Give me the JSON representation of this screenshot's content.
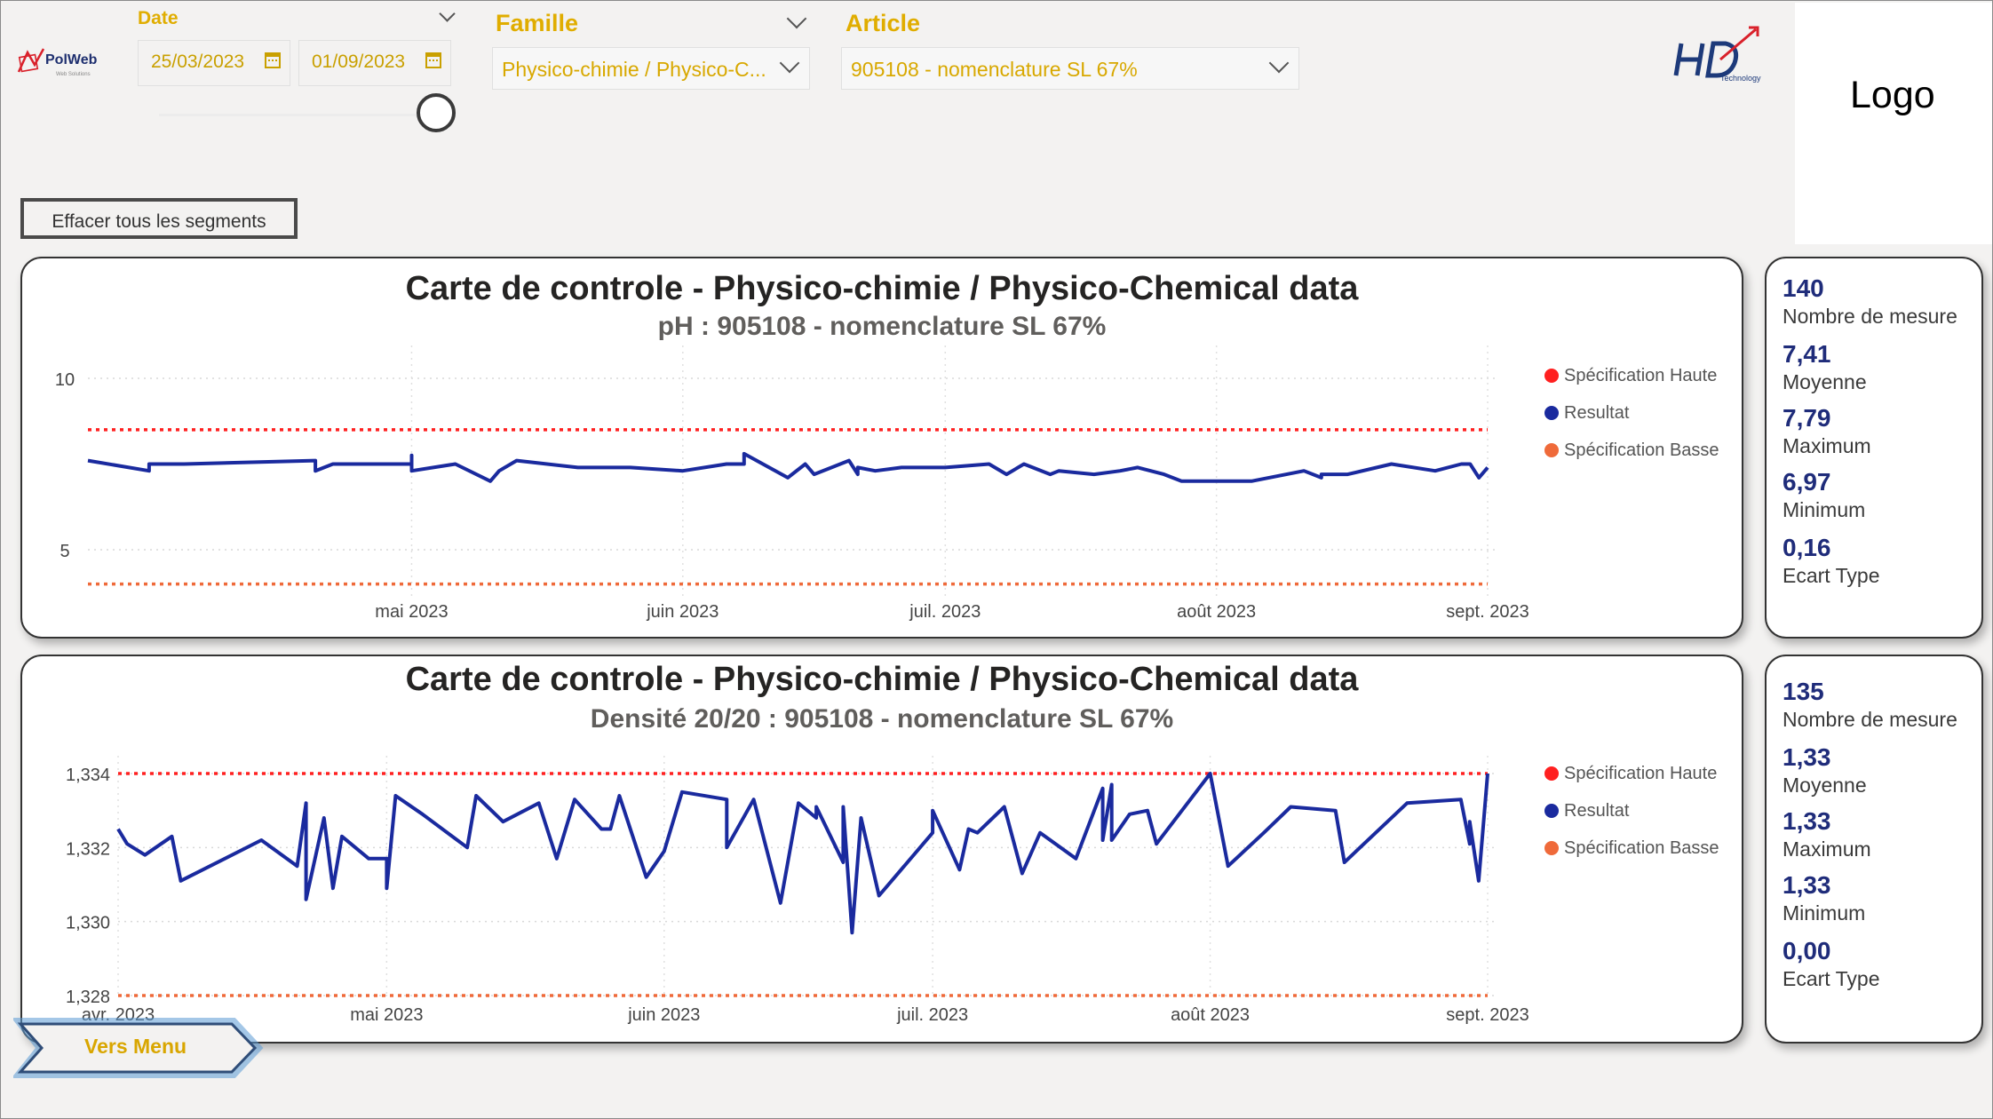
{
  "logo_placeholder": "Logo",
  "brand": {
    "left_logo": "PolWeb",
    "left_logo_sub": "Web Solutions",
    "right_logo": "HD",
    "right_logo_sub": "Technology"
  },
  "filters": {
    "date": {
      "title": "Date",
      "start": "25/03/2023",
      "end": "01/09/2023"
    },
    "famille": {
      "title": "Famille",
      "value": "Physico-chimie / Physico-C..."
    },
    "article": {
      "title": "Article",
      "value": "905108 - nomenclature SL 67%"
    }
  },
  "clear_button": "Effacer tous les segments",
  "menu_button": "Vers Menu",
  "colors": {
    "accent": "#e0ad00",
    "series": "#1a2a9e",
    "spec_high": "#ff2020",
    "spec_low": "#ef6a3a",
    "stat_value": "#1f2c7a"
  },
  "legend": {
    "spec_high": "Spécification Haute",
    "result": "Resultat",
    "spec_low": "Spécification Basse"
  },
  "chart_data": [
    {
      "type": "line",
      "title": "Carte de controle - Physico-chimie / Physico-Chemical data",
      "subtitle": "pH : 905108 - nomenclature SL 67%",
      "x_ticks": [
        "mai 2023",
        "juin 2023",
        "juil. 2023",
        "août 2023",
        "sept. 2023"
      ],
      "x_tick_dates": [
        "2023-05-01",
        "2023-06-01",
        "2023-07-01",
        "2023-08-01",
        "2023-09-01"
      ],
      "x_range": [
        "2023-03-25",
        "2023-09-01"
      ],
      "y_ticks": [
        {
          "value": 10,
          "label": "10"
        },
        {
          "value": 5,
          "label": "5"
        }
      ],
      "ylim": [
        4,
        10
      ],
      "grid": true,
      "legend_position": "right",
      "spec_high": 8.5,
      "spec_low": 4.0,
      "series": [
        {
          "name": "Resultat",
          "x": [
            "2023-03-25",
            "2023-04-01",
            "2023-04-01",
            "2023-04-05",
            "2023-04-20",
            "2023-04-20",
            "2023-04-22",
            "2023-05-01",
            "2023-05-01",
            "2023-05-01",
            "2023-05-06",
            "2023-05-10",
            "2023-05-11",
            "2023-05-13",
            "2023-05-20",
            "2023-05-26",
            "2023-06-01",
            "2023-06-06",
            "2023-06-08",
            "2023-06-08",
            "2023-06-13",
            "2023-06-15",
            "2023-06-16",
            "2023-06-18",
            "2023-06-20",
            "2023-06-21",
            "2023-06-21",
            "2023-06-23",
            "2023-06-26",
            "2023-06-28",
            "2023-07-01",
            "2023-07-06",
            "2023-07-08",
            "2023-07-10",
            "2023-07-13",
            "2023-07-14",
            "2023-07-18",
            "2023-07-21",
            "2023-07-23",
            "2023-07-26",
            "2023-07-28",
            "2023-08-05",
            "2023-08-11",
            "2023-08-13",
            "2023-08-13",
            "2023-08-16",
            "2023-08-21",
            "2023-08-26",
            "2023-08-29",
            "2023-08-30",
            "2023-08-31",
            "2023-09-01"
          ],
          "y": [
            7.6,
            7.3,
            7.5,
            7.5,
            7.6,
            7.3,
            7.5,
            7.5,
            7.75,
            7.3,
            7.5,
            7.0,
            7.3,
            7.6,
            7.4,
            7.4,
            7.3,
            7.5,
            7.5,
            7.8,
            7.1,
            7.5,
            7.2,
            7.4,
            7.6,
            7.2,
            7.4,
            7.3,
            7.4,
            7.4,
            7.4,
            7.5,
            7.2,
            7.5,
            7.2,
            7.3,
            7.2,
            7.3,
            7.4,
            7.2,
            7.0,
            7.0,
            7.3,
            7.1,
            7.2,
            7.2,
            7.5,
            7.3,
            7.5,
            7.5,
            7.1,
            7.4
          ]
        }
      ]
    },
    {
      "type": "line",
      "title": "Carte de controle - Physico-chimie / Physico-Chemical data",
      "subtitle": "Densité 20/20 : 905108 - nomenclature SL 67%",
      "x_ticks": [
        "avr. 2023",
        "mai 2023",
        "juin 2023",
        "juil. 2023",
        "août 2023",
        "sept. 2023"
      ],
      "x_tick_dates": [
        "2023-04-01",
        "2023-05-01",
        "2023-06-01",
        "2023-07-01",
        "2023-08-01",
        "2023-09-01"
      ],
      "x_range": [
        "2023-04-01",
        "2023-09-01"
      ],
      "y_ticks": [
        {
          "value": 1.334,
          "label": "1,334"
        },
        {
          "value": 1.332,
          "label": "1,332"
        },
        {
          "value": 1.33,
          "label": "1,330"
        },
        {
          "value": 1.328,
          "label": "1,328"
        }
      ],
      "ylim": [
        1.328,
        1.334
      ],
      "grid": true,
      "legend_position": "right",
      "spec_high": 1.334,
      "spec_low": 1.328,
      "series": [
        {
          "name": "Resultat",
          "x": [
            "2023-04-01",
            "2023-04-02",
            "2023-04-04",
            "2023-04-07",
            "2023-04-08",
            "2023-04-17",
            "2023-04-21",
            "2023-04-22",
            "2023-04-22",
            "2023-04-24",
            "2023-04-25",
            "2023-04-26",
            "2023-04-29",
            "2023-05-01",
            "2023-05-01",
            "2023-05-02",
            "2023-05-05",
            "2023-05-10",
            "2023-05-11",
            "2023-05-14",
            "2023-05-18",
            "2023-05-20",
            "2023-05-22",
            "2023-05-25",
            "2023-05-26",
            "2023-05-27",
            "2023-05-30",
            "2023-06-01",
            "2023-06-03",
            "2023-06-08",
            "2023-06-08",
            "2023-06-11",
            "2023-06-14",
            "2023-06-16",
            "2023-06-18",
            "2023-06-18",
            "2023-06-21",
            "2023-06-21",
            "2023-06-22",
            "2023-06-23",
            "2023-06-25",
            "2023-07-01",
            "2023-07-01",
            "2023-07-04",
            "2023-07-05",
            "2023-07-06",
            "2023-07-09",
            "2023-07-11",
            "2023-07-13",
            "2023-07-17",
            "2023-07-20",
            "2023-07-20",
            "2023-07-21",
            "2023-07-21",
            "2023-07-23",
            "2023-07-25",
            "2023-07-26",
            "2023-08-01",
            "2023-08-03",
            "2023-08-07",
            "2023-08-10",
            "2023-08-15",
            "2023-08-16",
            "2023-08-23",
            "2023-08-29",
            "2023-08-30",
            "2023-08-30",
            "2023-08-31",
            "2023-09-01"
          ],
          "y": [
            1.3325,
            1.3321,
            1.3318,
            1.3323,
            1.3311,
            1.3322,
            1.3315,
            1.3332,
            1.3306,
            1.3328,
            1.3309,
            1.3323,
            1.3317,
            1.3317,
            1.3309,
            1.3334,
            1.3329,
            1.332,
            1.3334,
            1.3327,
            1.3332,
            1.3317,
            1.3333,
            1.3325,
            1.3325,
            1.3334,
            1.3312,
            1.3319,
            1.3335,
            1.3333,
            1.332,
            1.3333,
            1.3305,
            1.3332,
            1.3328,
            1.3331,
            1.3316,
            1.3331,
            1.3297,
            1.3328,
            1.3307,
            1.3324,
            1.333,
            1.3314,
            1.3325,
            1.3324,
            1.3331,
            1.3313,
            1.3324,
            1.3317,
            1.3336,
            1.3322,
            1.3337,
            1.3322,
            1.3329,
            1.333,
            1.3321,
            1.334,
            1.3315,
            1.3324,
            1.3331,
            1.333,
            1.3316,
            1.3332,
            1.3333,
            1.3321,
            1.3327,
            1.3311,
            1.334
          ]
        }
      ]
    }
  ],
  "stats": [
    [
      {
        "value": "140",
        "label": "Nombre de mesure"
      },
      {
        "value": "7,41",
        "label": "Moyenne"
      },
      {
        "value": "7,79",
        "label": "Maximum"
      },
      {
        "value": "6,97",
        "label": "Minimum"
      },
      {
        "value": "0,16",
        "label": "Ecart Type"
      }
    ],
    [
      {
        "value": "135",
        "label": "Nombre de mesure"
      },
      {
        "value": "1,33",
        "label": "Moyenne"
      },
      {
        "value": "1,33",
        "label": "Maximum"
      },
      {
        "value": "1,33",
        "label": "Minimum"
      },
      {
        "value": "0,00",
        "label": "Ecart Type"
      }
    ]
  ]
}
